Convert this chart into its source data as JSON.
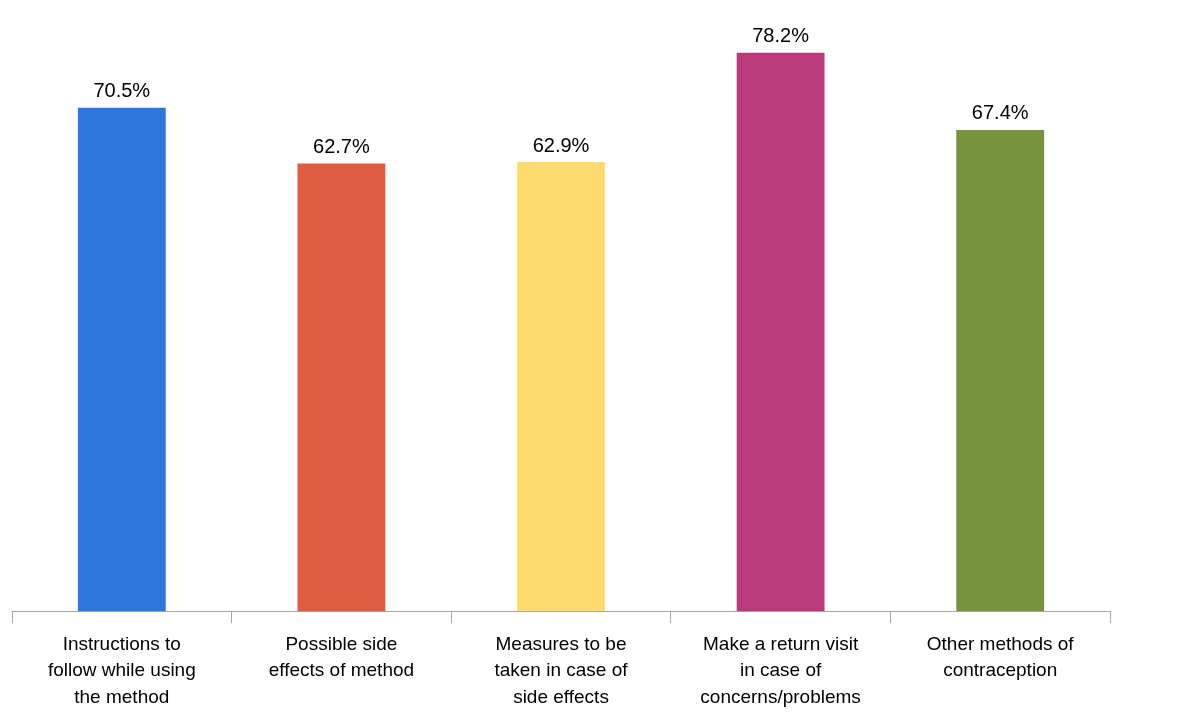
{
  "chart_data": {
    "type": "bar",
    "categories": [
      "Instructions to follow while using the method",
      "Possible side effects of method",
      "Measures to be taken in case of side effects",
      "Make a return visit in case of concerns/problems",
      "Other methods of contraception"
    ],
    "values": [
      70.5,
      62.7,
      62.9,
      78.2,
      67.4
    ],
    "colors": [
      "#2e75dc",
      "#e05c42",
      "#fddb6c",
      "#b83a7a",
      "#77933c"
    ],
    "value_labels": [
      "70.5%",
      "62.7%",
      "62.9%",
      "78.2%",
      "67.4%"
    ]
  }
}
